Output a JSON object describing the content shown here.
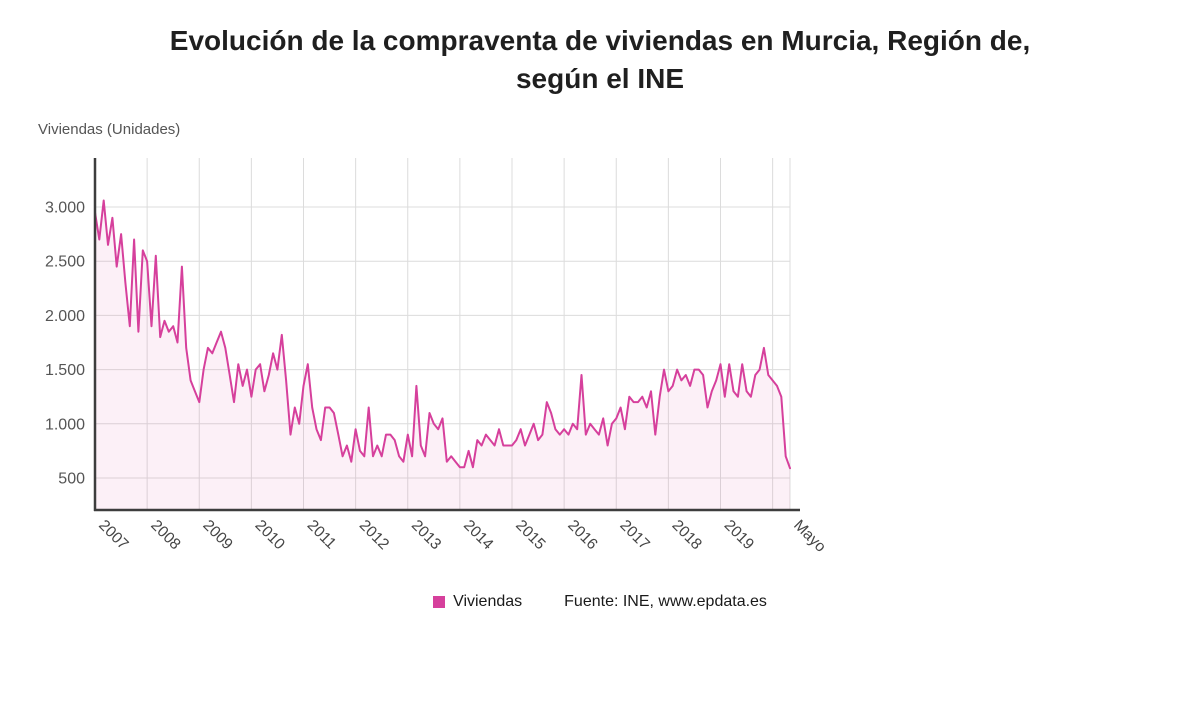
{
  "title": {
    "line1": "Evolución de la compraventa de viviendas en Murcia, Región de,",
    "line2": "según el INE"
  },
  "y_axis_title": "Viviendas (Unidades)",
  "legend": {
    "series_label": "Viviendas",
    "source": "Fuente: INE, www.epdata.es"
  },
  "colors": {
    "line": "#d6409c",
    "fill": "#d6409c14",
    "grid": "#dcdcdc",
    "axis": "#3d3d3d",
    "tick_text": "#555555",
    "x_tick_text": "#444444"
  },
  "chart_data": {
    "type": "line",
    "title": "Evolución de la compraventa de viviendas en Murcia, Región de, según el INE",
    "xlabel": "",
    "ylabel": "Viviendas (Unidades)",
    "x_start": "2007-01",
    "x_end": "2020-05",
    "frequency": "monthly",
    "grid": true,
    "legend_position": "bottom",
    "ylim": [
      200,
      3200
    ],
    "y_ticks": [
      {
        "label": "500",
        "v": 500
      },
      {
        "label": "1.000",
        "v": 1000
      },
      {
        "label": "1.500",
        "v": 1500
      },
      {
        "label": "2.000",
        "v": 2000
      },
      {
        "label": "2.500",
        "v": 2500
      },
      {
        "label": "3.000",
        "v": 3000
      }
    ],
    "x_ticks": [
      {
        "label": "2007",
        "m": 0
      },
      {
        "label": "2008",
        "m": 12
      },
      {
        "label": "2009",
        "m": 24
      },
      {
        "label": "2010",
        "m": 36
      },
      {
        "label": "2011",
        "m": 48
      },
      {
        "label": "2012",
        "m": 60
      },
      {
        "label": "2013",
        "m": 72
      },
      {
        "label": "2014",
        "m": 84
      },
      {
        "label": "2015",
        "m": 96
      },
      {
        "label": "2016",
        "m": 108
      },
      {
        "label": "2017",
        "m": 120
      },
      {
        "label": "2018",
        "m": 132
      },
      {
        "label": "2019",
        "m": 144
      },
      {
        "label": "",
        "m": 156
      },
      {
        "label": "Mayo",
        "m": 160
      }
    ],
    "series": [
      {
        "name": "Viviendas",
        "color": "#d6409c",
        "values": [
          2950,
          2700,
          3060,
          2650,
          2900,
          2450,
          2750,
          2300,
          1900,
          2700,
          1850,
          2600,
          2500,
          1900,
          2550,
          1800,
          1950,
          1850,
          1900,
          1750,
          2450,
          1700,
          1400,
          1300,
          1200,
          1500,
          1700,
          1650,
          1750,
          1850,
          1700,
          1450,
          1200,
          1550,
          1350,
          1500,
          1250,
          1500,
          1550,
          1300,
          1450,
          1650,
          1500,
          1820,
          1400,
          900,
          1150,
          1000,
          1350,
          1550,
          1150,
          950,
          850,
          1150,
          1150,
          1100,
          900,
          700,
          800,
          650,
          950,
          750,
          700,
          1150,
          700,
          800,
          700,
          900,
          900,
          850,
          700,
          650,
          900,
          700,
          1350,
          800,
          700,
          1100,
          1000,
          950,
          1050,
          650,
          700,
          650,
          600,
          600,
          750,
          600,
          850,
          800,
          900,
          850,
          800,
          950,
          800,
          800,
          800,
          850,
          950,
          800,
          900,
          1000,
          850,
          900,
          1200,
          1100,
          950,
          900,
          950,
          900,
          1000,
          950,
          1450,
          900,
          1000,
          950,
          900,
          1050,
          800,
          1000,
          1050,
          1150,
          950,
          1250,
          1200,
          1200,
          1250,
          1150,
          1300,
          900,
          1250,
          1500,
          1300,
          1350,
          1500,
          1400,
          1450,
          1350,
          1500,
          1500,
          1450,
          1150,
          1300,
          1400,
          1550,
          1250,
          1550,
          1300,
          1250,
          1550,
          1300,
          1250,
          1450,
          1500,
          1700,
          1450,
          1400,
          1350,
          1250,
          700,
          590
        ]
      }
    ]
  }
}
